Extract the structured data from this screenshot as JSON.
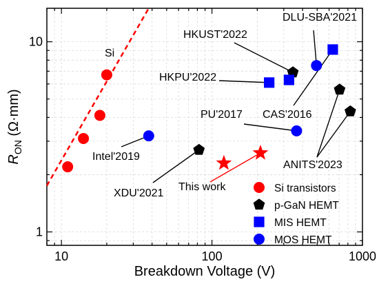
{
  "chart_data": {
    "type": "scatter",
    "xlabel": "Breakdown Voltage (V)",
    "ylabel": "R_ON (Ω·mm)",
    "ylabel_main": "R",
    "ylabel_sub": "ON",
    "ylabel_unit": " (Ω·mm)",
    "xscale": "log",
    "yscale": "log",
    "xlim": [
      8,
      1000
    ],
    "ylim": [
      0.85,
      15
    ],
    "xticks": [
      10,
      100,
      1000
    ],
    "xticklabels": [
      "10",
      "100",
      "1000"
    ],
    "yticks": [
      1,
      10
    ],
    "yticklabels": [
      "1",
      "10"
    ],
    "grid": true,
    "legend_position": "bottom-right",
    "series": [
      {
        "name": "Si transistors",
        "marker": "circle",
        "color": "#ff0000",
        "points": [
          [
            11,
            2.2
          ],
          [
            14,
            3.1
          ],
          [
            18,
            4.1
          ],
          [
            20,
            6.7
          ]
        ]
      },
      {
        "name": "p-GaN HEMT",
        "marker": "pentagon",
        "color": "#000000",
        "points": [
          [
            82,
            2.7
          ],
          [
            345,
            6.9
          ],
          [
            705,
            5.6
          ],
          [
            830,
            4.3
          ]
        ]
      },
      {
        "name": "MIS HEMT",
        "marker": "square",
        "color": "#0000ff",
        "points": [
          [
            240,
            6.1
          ],
          [
            325,
            6.3
          ],
          [
            635,
            9.1
          ]
        ]
      },
      {
        "name": "MOS HEMT",
        "marker": "circle",
        "color": "#0000ff",
        "points": [
          [
            38,
            3.2
          ],
          [
            365,
            3.4
          ],
          [
            495,
            7.5
          ]
        ]
      },
      {
        "name": "This work",
        "marker": "star",
        "color": "#ff0000",
        "points": [
          [
            120,
            2.3
          ],
          [
            210,
            2.6
          ]
        ]
      }
    ],
    "si_limit_line": {
      "label": "Si",
      "color": "#ff0000",
      "style": "dashed",
      "from": [
        8,
        1.75
      ],
      "to": [
        38,
        15
      ]
    },
    "annotations": [
      {
        "text": "DLU-SBA'2021",
        "color": "#000000",
        "target": [
          495,
          7.5
        ]
      },
      {
        "text": "HKUST'2022",
        "color": "#000000",
        "target": [
          345,
          6.9
        ]
      },
      {
        "text": "HKPU'2022",
        "color": "#000000",
        "target": [
          240,
          6.1
        ]
      },
      {
        "text": "PU'2017",
        "color": "#000000",
        "target": [
          365,
          3.4
        ]
      },
      {
        "text": "CAS'2016",
        "color": "#000000",
        "target": [
          635,
          9.1
        ]
      },
      {
        "text": "Intel'2019",
        "color": "#000000",
        "target": [
          38,
          3.2
        ]
      },
      {
        "text": "XDU'2021",
        "color": "#000000",
        "target": [
          82,
          2.7
        ]
      },
      {
        "text": "ANITS'2023",
        "color": "#000000",
        "targets": [
          [
            705,
            5.6
          ],
          [
            830,
            4.3
          ]
        ]
      },
      {
        "text": "This work",
        "color": "#ff0000",
        "target": [
          210,
          2.6
        ]
      }
    ],
    "legend": [
      {
        "label": "Si transistors",
        "marker": "circle",
        "color": "#ff0000"
      },
      {
        "label": "p-GaN HEMT",
        "marker": "pentagon",
        "color": "#000000"
      },
      {
        "label": "MIS HEMT",
        "marker": "square",
        "color": "#0000ff"
      },
      {
        "label": "MOS HEMT",
        "marker": "circle",
        "color": "#0000ff"
      }
    ]
  }
}
